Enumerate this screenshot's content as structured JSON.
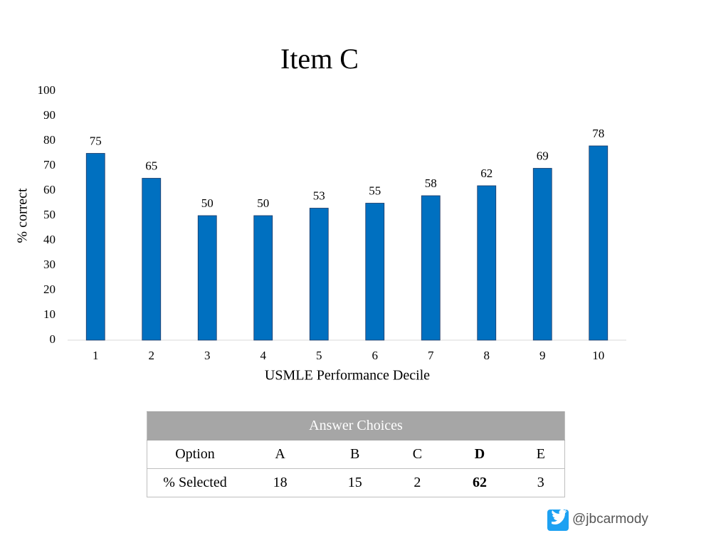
{
  "chart_data": {
    "type": "bar",
    "title": "Item C",
    "x_label": "USMLE Performance Decile",
    "y_label": "% correct",
    "categories": [
      "1",
      "2",
      "3",
      "4",
      "5",
      "6",
      "7",
      "8",
      "9",
      "10"
    ],
    "values": [
      75,
      65,
      50,
      50,
      53,
      55,
      58,
      62,
      69,
      78
    ],
    "color": "#0070c0",
    "ylim": [
      0,
      100
    ],
    "yticks": [
      0,
      10,
      20,
      30,
      40,
      50,
      60,
      70,
      80,
      90,
      100
    ],
    "grid": false
  },
  "table": {
    "title": "Answer Choices",
    "header": [
      "Option",
      "A",
      "B",
      "C",
      "D",
      "E"
    ],
    "rows": [
      [
        "% Selected",
        18,
        15,
        2,
        62,
        3
      ]
    ]
  },
  "footer": {
    "handle": "@jbcarmody"
  }
}
